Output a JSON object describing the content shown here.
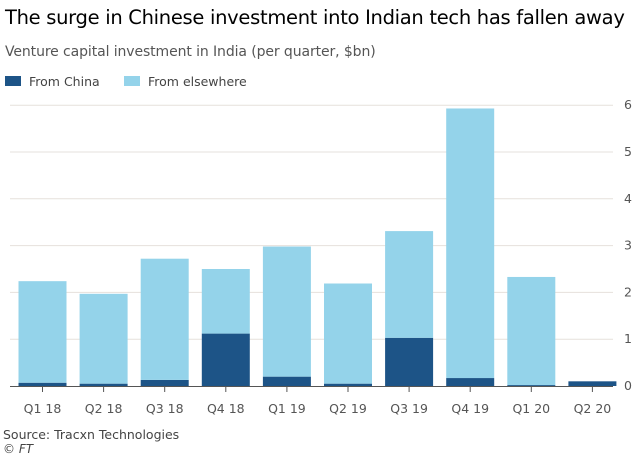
{
  "title": "The surge in Chinese investment into Indian tech has fallen away",
  "subtitle": "Venture capital investment in India (per quarter, $bn)",
  "source": "Source: Tracxn Technologies",
  "credit": "© FT",
  "chart_data": {
    "type": "bar",
    "stacked": true,
    "categories": [
      "Q1 18",
      "Q2 18",
      "Q3 18",
      "Q4 18",
      "Q1 19",
      "Q2 19",
      "Q3 19",
      "Q4 19",
      "Q1 20",
      "Q2 20"
    ],
    "series": [
      {
        "name": "From China",
        "color": "#1d5487",
        "values": [
          0.07,
          0.05,
          0.13,
          1.12,
          0.2,
          0.05,
          1.03,
          0.17,
          0.02,
          0.1
        ]
      },
      {
        "name": "From elsewhere",
        "color": "#94d3ea",
        "values": [
          2.17,
          1.92,
          2.59,
          1.38,
          2.78,
          2.14,
          2.28,
          5.76,
          2.31,
          0.0
        ]
      }
    ],
    "yaxis": {
      "min": 0,
      "max": 6,
      "ticks": [
        0,
        1,
        2,
        3,
        4,
        5,
        6
      ],
      "position": "right"
    },
    "grid": true,
    "legend": "top-left"
  }
}
